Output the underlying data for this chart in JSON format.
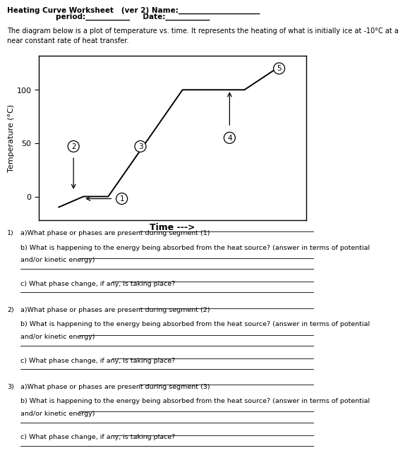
{
  "title_line1": "Heating Curve Worksheet   (ver 2) Name:______________________",
  "title_line2": "period:____________     Date:____________",
  "description": "The diagram below is a plot of temperature vs. time. It represents the heating of what is initially ice at -10°C at a\nnear constant rate of heat transfer.",
  "xlabel": "Time --->",
  "ylabel": "Temperature (°C)",
  "yticks": [
    0,
    50,
    100
  ],
  "curve_x": [
    1,
    2,
    3,
    6,
    7.5,
    8.5,
    9.8
  ],
  "curve_y": [
    -10,
    0,
    0,
    100,
    100,
    100,
    120
  ],
  "bg_color": "#ffffff",
  "text_color": "#000000",
  "questions": [
    {
      "num": "1)",
      "a": "a)What phase or phases are present during segment (1) "
    },
    {
      "num": "2)",
      "a": "a)What phase or phases are present during segment (2) "
    },
    {
      "num": "3)",
      "a": "a)What phase or phases are present during segment (3) "
    }
  ],
  "q_b_text": "b) What is happening to the energy being absorbed from the heat source? (answer in terms of potential",
  "q_b_text2": "and/or kinetic energy) ",
  "q_c_text": "c) What phase change, if any, is taking place? "
}
